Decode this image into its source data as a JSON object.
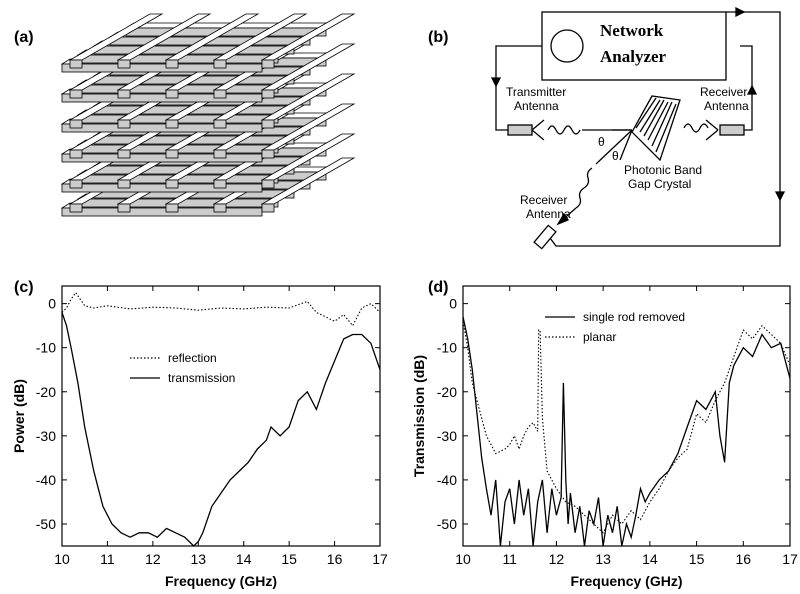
{
  "panels": {
    "a": {
      "label": "(a)"
    },
    "b": {
      "label": "(b)",
      "analyzer_line1": "Network",
      "analyzer_line2": "Analyzer",
      "tx_line1": "Transmitter",
      "tx_line2": "Antenna",
      "rx_line1": "Receiver",
      "rx_line2": "Antenna",
      "rx2_line1": "Receiver",
      "rx2_line2": "Antenna",
      "crystal_line1": "Photonic Band",
      "crystal_line2": "Gap Crystal",
      "theta": "θ"
    },
    "c": {
      "label": "(c)"
    },
    "d": {
      "label": "(d)"
    }
  },
  "chart_data": [
    {
      "type": "line",
      "panel": "c",
      "xlabel": "Frequency (GHz)",
      "ylabel": "Power (dB)",
      "xlim": [
        10,
        17
      ],
      "ylim": [
        -55,
        4
      ],
      "xticks": [
        "10",
        "11",
        "12",
        "13",
        "14",
        "15",
        "16",
        "17"
      ],
      "yticks": [
        "0",
        "-10",
        "-20",
        "-30",
        "-40",
        "-50"
      ],
      "legend": [
        "reflection",
        "transmission"
      ],
      "series": [
        {
          "name": "reflection",
          "style": "dotted",
          "x": [
            10.0,
            10.1,
            10.2,
            10.3,
            10.4,
            10.5,
            10.7,
            11.0,
            11.5,
            12.0,
            12.5,
            13.0,
            13.5,
            14.0,
            14.5,
            15.0,
            15.4,
            15.6,
            15.8,
            16.0,
            16.2,
            16.4,
            16.6,
            16.8,
            17.0
          ],
          "y": [
            -2,
            -1,
            1,
            2.5,
            1,
            -0.5,
            -1,
            -0.5,
            -1.2,
            -0.8,
            -1,
            -1.5,
            -1,
            -1.2,
            -0.8,
            -1,
            0.5,
            -2,
            -3,
            -4,
            -2.5,
            -5,
            -1,
            0,
            -2
          ]
        },
        {
          "name": "transmission",
          "style": "solid",
          "x": [
            10.0,
            10.1,
            10.2,
            10.35,
            10.5,
            10.7,
            10.9,
            11.1,
            11.3,
            11.5,
            11.7,
            11.9,
            12.1,
            12.3,
            12.5,
            12.7,
            12.9,
            13.0,
            13.1,
            13.3,
            13.5,
            13.7,
            13.9,
            14.1,
            14.3,
            14.5,
            14.6,
            14.8,
            15.0,
            15.2,
            15.4,
            15.6,
            15.8,
            16.0,
            16.2,
            16.4,
            16.6,
            16.8,
            17.0
          ],
          "y": [
            -2,
            -5,
            -10,
            -18,
            -28,
            -38,
            -46,
            -50,
            -52,
            -53,
            -52,
            -52,
            -53,
            -51,
            -52,
            -53,
            -55,
            -54,
            -52,
            -46,
            -43,
            -40,
            -38,
            -36,
            -33,
            -31,
            -28,
            -30,
            -28,
            -22,
            -20,
            -24,
            -18,
            -13,
            -8,
            -7,
            -7,
            -9,
            -15
          ]
        }
      ]
    },
    {
      "type": "line",
      "panel": "d",
      "xlabel": "Frequency (GHz)",
      "ylabel": "Transmission (dB)",
      "xlim": [
        10,
        17
      ],
      "ylim": [
        -55,
        4
      ],
      "xticks": [
        "10",
        "11",
        "12",
        "13",
        "14",
        "15",
        "16",
        "17"
      ],
      "yticks": [
        "0",
        "-10",
        "-20",
        "-30",
        "-40",
        "-50"
      ],
      "legend": [
        "single rod removed",
        "planar"
      ],
      "series": [
        {
          "name": "single rod removed",
          "style": "solid",
          "x": [
            10.0,
            10.1,
            10.2,
            10.3,
            10.4,
            10.5,
            10.6,
            10.7,
            10.8,
            10.9,
            11.0,
            11.1,
            11.2,
            11.3,
            11.4,
            11.5,
            11.6,
            11.7,
            11.8,
            11.9,
            12.0,
            12.1,
            12.15,
            12.2,
            12.25,
            12.3,
            12.4,
            12.5,
            12.6,
            12.7,
            12.8,
            12.9,
            13.0,
            13.1,
            13.2,
            13.3,
            13.4,
            13.5,
            13.6,
            13.7,
            13.8,
            13.9,
            14.0,
            14.2,
            14.4,
            14.6,
            14.8,
            15.0,
            15.2,
            15.4,
            15.5,
            15.6,
            15.7,
            15.8,
            16.0,
            16.2,
            16.4,
            16.6,
            16.8,
            17.0
          ],
          "y": [
            -3,
            -8,
            -15,
            -25,
            -35,
            -42,
            -48,
            -40,
            -55,
            -45,
            -42,
            -50,
            -40,
            -48,
            -42,
            -55,
            -45,
            -40,
            -52,
            -42,
            -48,
            -44,
            -18,
            -40,
            -50,
            -43,
            -52,
            -46,
            -55,
            -47,
            -50,
            -44,
            -55,
            -48,
            -52,
            -46,
            -55,
            -50,
            -53,
            -48,
            -42,
            -45,
            -43,
            -40,
            -38,
            -34,
            -28,
            -22,
            -24,
            -20,
            -30,
            -36,
            -18,
            -14,
            -10,
            -12,
            -7,
            -10,
            -9,
            -17
          ]
        },
        {
          "name": "planar",
          "style": "dotted",
          "x": [
            10.0,
            10.1,
            10.2,
            10.3,
            10.4,
            10.5,
            10.7,
            10.9,
            11.0,
            11.1,
            11.2,
            11.3,
            11.4,
            11.5,
            11.6,
            11.62,
            11.65,
            11.7,
            11.8,
            11.9,
            12.0,
            12.2,
            12.4,
            12.6,
            12.8,
            13.0,
            13.2,
            13.4,
            13.6,
            13.8,
            14.0,
            14.2,
            14.4,
            14.6,
            14.8,
            15.0,
            15.2,
            15.4,
            15.6,
            15.8,
            16.0,
            16.2,
            16.4,
            16.6,
            16.8,
            17.0
          ],
          "y": [
            -4,
            -10,
            -18,
            -22,
            -26,
            -30,
            -34,
            -33,
            -32,
            -30,
            -33,
            -30,
            -28,
            -27,
            -29,
            -6,
            -6,
            -26,
            -38,
            -40,
            -42,
            -45,
            -46,
            -48,
            -50,
            -52,
            -48,
            -50,
            -47,
            -49,
            -45,
            -42,
            -38,
            -35,
            -33,
            -25,
            -27,
            -22,
            -18,
            -12,
            -6,
            -8,
            -5,
            -7,
            -9,
            -14
          ]
        }
      ]
    }
  ]
}
